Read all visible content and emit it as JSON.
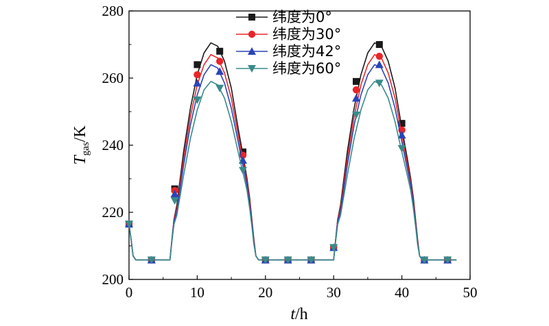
{
  "chart_data": {
    "type": "line",
    "title": "",
    "xlabel": {
      "var": "t",
      "unit": "/h"
    },
    "ylabel": {
      "var": "T",
      "sub": "gas",
      "unit": "/K"
    },
    "xlim": [
      0,
      50
    ],
    "ylim": [
      200,
      280
    ],
    "xticks": [
      0,
      10,
      20,
      30,
      40,
      50
    ],
    "yticks": [
      200,
      220,
      240,
      260,
      280
    ],
    "grid": false,
    "legend_position": "top-center",
    "series": [
      {
        "name": "纬度为0°",
        "color": "#1a1a1a",
        "marker": "square",
        "line_x": [
          0,
          0.3,
          0.6,
          1,
          6,
          6.3,
          6.6,
          7,
          8,
          9,
          10,
          11,
          12,
          13,
          14,
          15,
          16,
          16.8,
          17.3,
          17.7,
          18,
          18.3,
          18.6,
          19,
          30,
          30.3,
          30.6,
          31,
          32,
          33,
          34,
          35,
          36,
          37,
          38,
          39,
          40,
          40.8,
          41.3,
          41.7,
          42,
          42.3,
          42.6,
          43,
          48
        ],
        "line_y": [
          216.5,
          212,
          207,
          205.8,
          205.8,
          212,
          218,
          222,
          238,
          251,
          261,
          267.5,
          270.5,
          269.5,
          265,
          257,
          245,
          236,
          230,
          224,
          218,
          212,
          207,
          205.8,
          205.8,
          212,
          218,
          222,
          238,
          251,
          261,
          267.5,
          270.5,
          269.5,
          265,
          257,
          245,
          236,
          230,
          224,
          218,
          212,
          207,
          205.8,
          205.8
        ],
        "marker_x": [
          0,
          3.3,
          6.7,
          10,
          13.3,
          16.7,
          20,
          23.3,
          26.7,
          30,
          33.3,
          36.7,
          40,
          43.3,
          46.7
        ],
        "marker_y": [
          216.5,
          205.8,
          227,
          264,
          268,
          238,
          205.8,
          205.8,
          205.8,
          209.5,
          259,
          270,
          246.5,
          205.8,
          205.8
        ]
      },
      {
        "name": "纬度为30°",
        "color": "#e8262a",
        "marker": "circle",
        "line_x": [
          0,
          0.3,
          0.6,
          1,
          6,
          6.3,
          6.6,
          7,
          8,
          9,
          10,
          11,
          12,
          13,
          14,
          15,
          16,
          16.8,
          17.3,
          17.7,
          18,
          18.3,
          18.6,
          19,
          30,
          30.3,
          30.6,
          31,
          32,
          33,
          34,
          35,
          36,
          37,
          38,
          39,
          40,
          40.8,
          41.3,
          41.7,
          42,
          42.3,
          42.6,
          43,
          48
        ],
        "line_y": [
          216.5,
          212,
          207,
          205.8,
          205.8,
          212,
          218,
          221,
          236,
          248.5,
          258,
          264,
          267,
          266,
          261.5,
          254,
          243,
          234.5,
          229,
          223,
          217.5,
          211.5,
          207,
          205.8,
          205.8,
          212,
          218,
          221,
          236,
          248.5,
          258,
          264,
          267,
          266,
          261.5,
          254,
          243,
          234.5,
          229,
          223,
          217.5,
          211.5,
          207,
          205.8,
          205.8
        ],
        "marker_x": [
          0,
          3.3,
          6.7,
          10,
          13.3,
          16.7,
          20,
          23.3,
          26.7,
          30,
          33.3,
          36.7,
          40,
          43.3,
          46.7
        ],
        "marker_y": [
          216.5,
          205.8,
          226.5,
          261,
          265,
          237,
          205.8,
          205.8,
          205.8,
          209.5,
          256.5,
          266.5,
          244.5,
          205.8,
          205.8
        ]
      },
      {
        "name": "纬度为42°",
        "color": "#2a44b8",
        "marker": "triangle-up",
        "line_x": [
          0,
          0.3,
          0.6,
          1,
          6,
          6.3,
          6.6,
          7,
          8,
          9,
          10,
          11,
          12,
          13,
          14,
          15,
          16,
          16.8,
          17.3,
          17.7,
          18,
          18.3,
          18.6,
          19,
          30,
          30.3,
          30.6,
          31,
          32,
          33,
          34,
          35,
          36,
          37,
          38,
          39,
          40,
          40.8,
          41.3,
          41.7,
          42,
          42.3,
          42.6,
          43,
          48
        ],
        "line_y": [
          216.5,
          212,
          207,
          205.8,
          205.8,
          212,
          217.5,
          220,
          234,
          246,
          255,
          261,
          264,
          263,
          258.5,
          251,
          241,
          233,
          228,
          222,
          217,
          211,
          207,
          205.8,
          205.8,
          212,
          217.5,
          220,
          234,
          246,
          255,
          261,
          264,
          263,
          258.5,
          251,
          241,
          233,
          228,
          222,
          217,
          211,
          207,
          205.8,
          205.8
        ],
        "marker_x": [
          0,
          3.3,
          6.7,
          10,
          13.3,
          16.7,
          20,
          23.3,
          26.7,
          30,
          33.3,
          36.7,
          40,
          43.3,
          46.7
        ],
        "marker_y": [
          216.5,
          205.8,
          225.5,
          258.5,
          262,
          235.5,
          205.8,
          205.8,
          205.8,
          209.5,
          254,
          264,
          243,
          205.8,
          205.8
        ]
      },
      {
        "name": "纬度为60°",
        "color": "#3a8a8a",
        "marker": "triangle-down",
        "line_x": [
          0,
          0.3,
          0.6,
          1,
          6,
          6.3,
          6.6,
          7,
          8,
          9,
          10,
          11,
          12,
          13,
          14,
          15,
          16,
          16.8,
          17.3,
          17.7,
          18,
          18.3,
          18.6,
          19,
          30,
          30.3,
          30.6,
          31,
          32,
          33,
          34,
          35,
          36,
          37,
          38,
          39,
          40,
          40.8,
          41.3,
          41.7,
          42,
          42.3,
          42.6,
          43,
          48
        ],
        "line_y": [
          216.5,
          212,
          207,
          205.8,
          205.8,
          211.5,
          216.5,
          219,
          231,
          242,
          250.5,
          256.5,
          259,
          258,
          254,
          247,
          238,
          231,
          226.5,
          221,
          216,
          210.5,
          207,
          205.8,
          205.8,
          211.5,
          216.5,
          219,
          231,
          242,
          250.5,
          256.5,
          259,
          258,
          254,
          247,
          238,
          231,
          226.5,
          221,
          216,
          210.5,
          207,
          205.8,
          205.8
        ],
        "marker_x": [
          0,
          3.3,
          6.7,
          10,
          13.3,
          16.7,
          20,
          23.3,
          26.7,
          30,
          33.3,
          36.7,
          40,
          43.3,
          46.7
        ],
        "marker_y": [
          216.5,
          205.8,
          223.5,
          253.5,
          257,
          232.5,
          205.8,
          205.8,
          205.8,
          209.5,
          249,
          258.5,
          239,
          205.8,
          205.8
        ]
      }
    ]
  }
}
